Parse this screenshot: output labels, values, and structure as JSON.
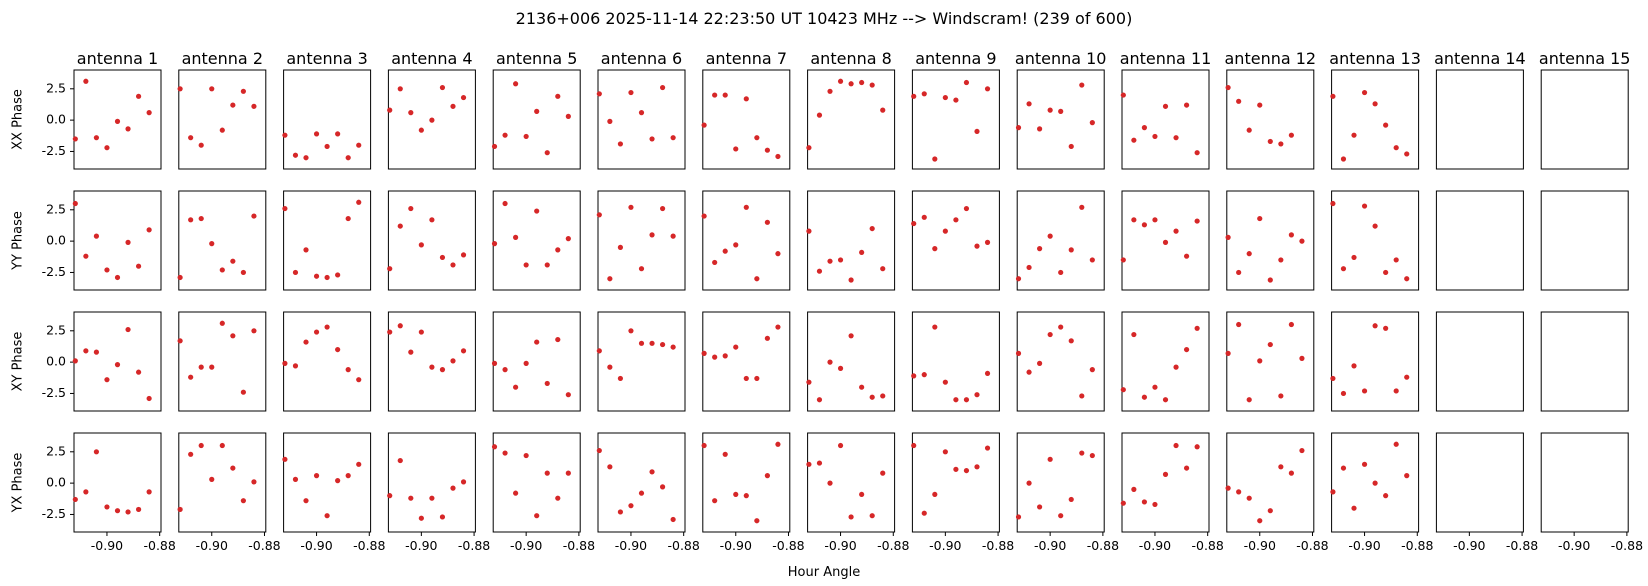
{
  "chart_data": {
    "type": "scatter",
    "title": "2136+006  2025-11-14 22:23:50 UT  10423 MHz  --> Windscram! (239 of 600)",
    "xlabel": "Hour Angle",
    "row_labels": [
      "XX Phase",
      "YY Phase",
      "XY Phase",
      "YX Phase"
    ],
    "panel_titles": [
      "antenna 1",
      "antenna 2",
      "antenna 3",
      "antenna 4",
      "antenna 5",
      "antenna 6",
      "antenna 7",
      "antenna 8",
      "antenna 9",
      "antenna 10",
      "antenna 11",
      "antenna 12",
      "antenna 13",
      "antenna 14",
      "antenna 15"
    ],
    "xlim": [
      -0.9125,
      -0.8795
    ],
    "ylim": [
      -3.9,
      4.0
    ],
    "x_ticks": [
      -0.9,
      -0.88
    ],
    "x_tick_labels": [
      "-0.90",
      "-0.88"
    ],
    "y_ticks": [
      2.5,
      0.0,
      -2.5
    ],
    "y_tick_labels": [
      "2.5",
      "0.0",
      "-2.5"
    ],
    "grid": false,
    "marker_color": "#d62728",
    "x": [
      -0.912,
      -0.908,
      -0.904,
      -0.9,
      -0.896,
      -0.892,
      -0.888,
      -0.884,
      -0.88
    ],
    "series": [
      {
        "row": "XX Phase",
        "panels": [
          [
            -1.5,
            3.1,
            -1.4,
            -2.2,
            -0.1,
            -0.7,
            1.9,
            0.6,
            null
          ],
          [
            2.5,
            -1.4,
            -2.0,
            2.5,
            -0.8,
            1.2,
            2.3,
            1.1,
            null
          ],
          [
            -1.2,
            -2.8,
            -3.0,
            -1.1,
            -2.1,
            -1.1,
            -3.0,
            -2.0,
            null
          ],
          [
            0.8,
            2.5,
            0.6,
            -0.8,
            0.0,
            2.6,
            1.1,
            1.8,
            null
          ],
          [
            -2.1,
            -1.2,
            2.9,
            -1.3,
            0.7,
            -2.6,
            1.9,
            0.3,
            null
          ],
          [
            2.1,
            -0.1,
            -1.9,
            2.2,
            0.6,
            -1.5,
            2.6,
            -1.4,
            null
          ],
          [
            -0.4,
            2.0,
            2.0,
            -2.3,
            1.7,
            -1.4,
            -2.4,
            -2.9,
            null
          ],
          [
            -2.2,
            0.4,
            2.3,
            3.1,
            2.9,
            3.0,
            2.8,
            0.8,
            null
          ],
          [
            1.9,
            2.1,
            -3.1,
            1.8,
            1.6,
            3.0,
            -0.9,
            2.5,
            null
          ],
          [
            -0.6,
            1.3,
            -0.7,
            0.8,
            0.7,
            -2.1,
            2.8,
            -0.2,
            null
          ],
          [
            2.0,
            -1.6,
            -0.6,
            -1.3,
            1.1,
            -1.4,
            1.2,
            -2.6,
            null
          ],
          [
            2.6,
            1.5,
            -0.8,
            1.2,
            -1.7,
            -1.9,
            -1.2,
            null,
            null
          ],
          [
            1.9,
            -3.1,
            -1.2,
            2.2,
            1.3,
            -0.4,
            -2.2,
            -2.7,
            null
          ],
          [],
          []
        ]
      },
      {
        "row": "YY Phase",
        "panels": [
          [
            3.0,
            -1.2,
            0.4,
            -2.3,
            -2.9,
            -0.1,
            -2.0,
            0.9,
            null
          ],
          [
            -2.9,
            1.7,
            1.8,
            -0.2,
            -2.3,
            -1.6,
            -2.5,
            2.0,
            null
          ],
          [
            2.6,
            -2.5,
            -0.7,
            -2.8,
            -2.9,
            -2.7,
            1.8,
            3.1,
            null
          ],
          [
            -2.2,
            1.2,
            2.6,
            -0.3,
            1.7,
            -1.3,
            -1.9,
            -1.1,
            null
          ],
          [
            -0.2,
            3.0,
            0.3,
            -1.9,
            2.4,
            -1.9,
            -0.7,
            0.2,
            null
          ],
          [
            2.1,
            -3.0,
            -0.5,
            2.7,
            -2.2,
            0.5,
            2.6,
            0.4,
            null
          ],
          [
            2.0,
            -1.7,
            -0.8,
            -0.3,
            2.7,
            -3.0,
            1.5,
            -1.0,
            null
          ],
          [
            0.8,
            -2.4,
            -1.6,
            -1.5,
            -3.1,
            -0.9,
            1.0,
            -2.2,
            null
          ],
          [
            1.4,
            1.9,
            -0.6,
            0.8,
            1.7,
            2.6,
            -0.4,
            -0.1,
            null
          ],
          [
            -3.0,
            -2.1,
            -0.6,
            0.4,
            -2.5,
            -0.7,
            2.7,
            -1.5,
            null
          ],
          [
            -1.5,
            1.7,
            1.3,
            1.7,
            -0.1,
            0.8,
            -1.2,
            1.6,
            null
          ],
          [
            0.3,
            -2.5,
            -1.0,
            1.8,
            -3.1,
            -1.5,
            0.5,
            0.0,
            null
          ],
          [
            3.0,
            -2.2,
            -1.3,
            2.8,
            1.2,
            -2.5,
            -1.5,
            -3.0,
            null
          ],
          [],
          []
        ]
      },
      {
        "row": "XY Phase",
        "panels": [
          [
            0.1,
            0.9,
            0.8,
            -1.4,
            -0.2,
            2.6,
            -0.8,
            -2.9,
            null
          ],
          [
            1.7,
            -1.2,
            -0.4,
            -0.4,
            3.1,
            2.1,
            -2.4,
            2.5,
            null
          ],
          [
            -0.1,
            -0.3,
            1.6,
            2.4,
            2.8,
            1.0,
            -0.6,
            -1.4,
            null
          ],
          [
            2.4,
            2.9,
            0.8,
            2.4,
            -0.4,
            -0.6,
            0.1,
            0.9,
            null
          ],
          [
            -0.1,
            -0.6,
            -2.0,
            -0.1,
            1.6,
            -1.7,
            1.8,
            -2.6,
            null
          ],
          [
            0.9,
            -0.4,
            -1.3,
            2.5,
            1.5,
            1.5,
            1.4,
            1.2,
            null
          ],
          [
            0.7,
            0.4,
            0.5,
            1.2,
            -1.3,
            -1.3,
            1.9,
            2.8,
            null
          ],
          [
            -1.6,
            -3.0,
            0.0,
            -0.5,
            2.1,
            -2.0,
            -2.8,
            -2.7,
            null
          ],
          [
            -1.1,
            -1.0,
            2.8,
            -1.6,
            -3.0,
            -3.0,
            -2.6,
            -0.9,
            null
          ],
          [
            0.7,
            -0.8,
            -0.1,
            2.2,
            2.8,
            1.7,
            -2.7,
            -0.6,
            null
          ],
          [
            -2.2,
            2.2,
            -2.8,
            -2.0,
            -3.0,
            -0.4,
            1.0,
            2.7,
            null
          ],
          [
            0.7,
            3.0,
            -3.0,
            0.1,
            1.4,
            -2.7,
            3.0,
            0.3,
            null
          ],
          [
            -1.3,
            -2.5,
            -0.3,
            -2.3,
            2.9,
            2.7,
            -2.3,
            -1.2,
            null
          ],
          [],
          []
        ]
      },
      {
        "row": "YX Phase",
        "panels": [
          [
            -1.3,
            -0.7,
            2.5,
            -1.9,
            -2.2,
            -2.3,
            -2.1,
            -0.7,
            null
          ],
          [
            -2.1,
            2.3,
            3.0,
            0.3,
            3.0,
            1.2,
            -1.4,
            0.1,
            null
          ],
          [
            1.9,
            0.3,
            -1.4,
            0.6,
            -2.6,
            0.2,
            0.6,
            1.5,
            null
          ],
          [
            -1.0,
            1.8,
            -1.2,
            -2.8,
            -1.2,
            -2.7,
            -0.4,
            0.1,
            null
          ],
          [
            2.9,
            2.4,
            -0.8,
            2.2,
            -2.6,
            0.8,
            -1.2,
            0.8,
            null
          ],
          [
            2.6,
            1.3,
            -2.3,
            -1.8,
            -0.8,
            0.9,
            -0.3,
            -2.9,
            null
          ],
          [
            3.0,
            -1.4,
            2.3,
            -0.9,
            -1.0,
            -3.0,
            0.6,
            3.1,
            null
          ],
          [
            1.5,
            1.6,
            0.0,
            3.0,
            -2.7,
            -0.9,
            -2.6,
            0.8,
            null
          ],
          [
            3.0,
            -2.4,
            -0.9,
            2.5,
            1.1,
            1.0,
            1.3,
            2.8,
            null
          ],
          [
            -2.7,
            0.0,
            -1.9,
            1.9,
            -2.6,
            -1.3,
            2.4,
            2.2,
            null
          ],
          [
            -1.6,
            -0.5,
            -1.5,
            -1.7,
            0.7,
            3.0,
            1.2,
            2.9,
            null
          ],
          [
            -0.4,
            -0.7,
            -1.2,
            -3.0,
            -2.2,
            1.3,
            0.8,
            2.6,
            null
          ],
          [
            -0.7,
            1.2,
            -2.0,
            1.5,
            0.0,
            -1.0,
            3.1,
            0.6,
            null
          ],
          [],
          []
        ]
      }
    ]
  }
}
